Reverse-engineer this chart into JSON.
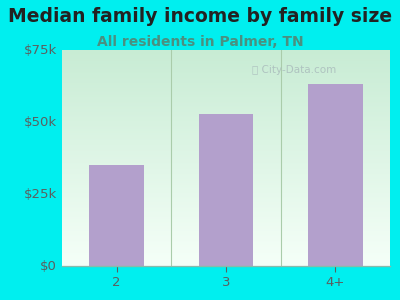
{
  "title": "Median family income by family size",
  "subtitle": "All residents in Palmer, TN",
  "categories": [
    "2",
    "3",
    "4+"
  ],
  "values": [
    35000,
    52500,
    63000
  ],
  "bar_color": "#b3a0cc",
  "background_color": "#00efef",
  "plot_bg_top_left": "#c8ecd4",
  "plot_bg_bottom_right": "#f5fff8",
  "title_color": "#222222",
  "subtitle_color": "#4a9080",
  "tick_color": "#5a6060",
  "ylim": [
    0,
    75000
  ],
  "yticks": [
    0,
    25000,
    50000,
    75000
  ],
  "ytick_labels": [
    "$0",
    "$25k",
    "$50k",
    "$75k"
  ],
  "title_fontsize": 13.5,
  "subtitle_fontsize": 10,
  "tick_fontsize": 9.5,
  "watermark": "City-Data.com",
  "separator_color": "#aaccaa",
  "bottom_line_color": "#88bbaa"
}
